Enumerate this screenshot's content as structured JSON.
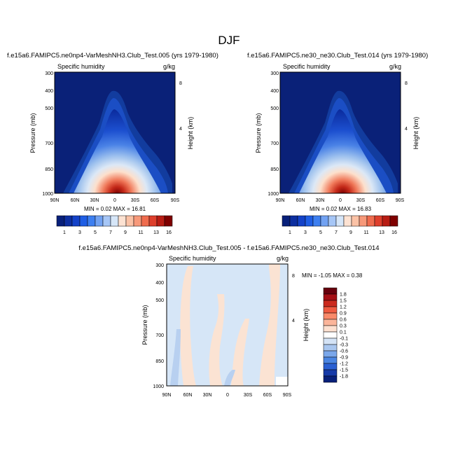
{
  "page_title": "DJF",
  "chart_data": [
    {
      "type": "heatmap",
      "title": "f.e15a6.FAMIPC5.ne0np4-VarMeshNH3.Club_Test.005 (yrs 1979-1980)",
      "variable": "Specific humidity",
      "units": "g/kg",
      "ylabel": "Pressure (mb)",
      "ylabel_right": "Height (km)",
      "x_ticks": [
        "90N",
        "60N",
        "30N",
        "0",
        "30S",
        "60S",
        "90S"
      ],
      "y_ticks": [
        "300",
        "400",
        "500",
        "700",
        "850",
        "1000"
      ],
      "y_ticks_right": [
        "8",
        "4"
      ],
      "stats": "MIN =  0.02  MAX =  16.81",
      "min": 0.02,
      "max": 16.81,
      "colorbar_labels": [
        "1",
        "3",
        "5",
        "7",
        "9",
        "11",
        "13",
        "16"
      ],
      "colorbar_levels": [
        1,
        2,
        3,
        4,
        5,
        6,
        7,
        8,
        9,
        10,
        11,
        12,
        13,
        14,
        16
      ]
    },
    {
      "type": "heatmap",
      "title": "f.e15a6.FAMIPC5.ne30_ne30.Club_Test.014 (yrs 1979-1980)",
      "variable": "Specific humidity",
      "units": "g/kg",
      "ylabel": "Pressure (mb)",
      "ylabel_right": "Height (km)",
      "x_ticks": [
        "90N",
        "60N",
        "30N",
        "0",
        "30S",
        "60S",
        "90S"
      ],
      "y_ticks": [
        "300",
        "400",
        "500",
        "700",
        "850",
        "1000"
      ],
      "y_ticks_right": [
        "8",
        "4"
      ],
      "stats": "MIN =  0.02  MAX =  16.83",
      "min": 0.02,
      "max": 16.83,
      "colorbar_labels": [
        "1",
        "3",
        "5",
        "7",
        "9",
        "11",
        "13",
        "16"
      ],
      "colorbar_levels": [
        1,
        2,
        3,
        4,
        5,
        6,
        7,
        8,
        9,
        10,
        11,
        12,
        13,
        14,
        16
      ]
    },
    {
      "type": "heatmap",
      "title": "f.e15a6.FAMIPC5.ne0np4-VarMeshNH3.Club_Test.005 - f.e15a6.FAMIPC5.ne30_ne30.Club_Test.014",
      "variable": "Specific humidity",
      "units": "g/kg",
      "ylabel": "Pressure (mb)",
      "ylabel_right": "Height (km)",
      "x_ticks": [
        "90N",
        "60N",
        "30N",
        "0",
        "30S",
        "60S",
        "90S"
      ],
      "y_ticks": [
        "300",
        "400",
        "500",
        "700",
        "850",
        "1000"
      ],
      "y_ticks_right": [
        "8",
        "4"
      ],
      "stats": "MIN = -1.05  MAX =  0.38",
      "min": -1.05,
      "max": 0.38,
      "colorbar_labels": [
        "1.8",
        "1.5",
        "1.2",
        "0.9",
        "0.6",
        "0.3",
        "0.1",
        "-0.1",
        "-0.3",
        "-0.6",
        "-0.9",
        "-1.2",
        "-1.5",
        "-1.8"
      ]
    }
  ]
}
